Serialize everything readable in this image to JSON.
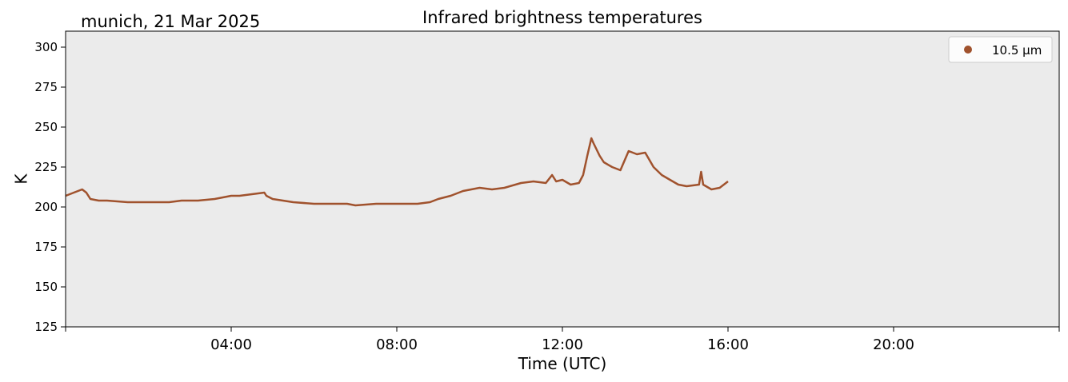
{
  "chart_data": {
    "type": "line",
    "title": "Infrared brightness temperatures",
    "location_label": "munich, 21 Mar 2025",
    "xlabel": "Time (UTC)",
    "ylabel": "K",
    "xlim_hours": [
      0,
      24
    ],
    "ylim": [
      125,
      310
    ],
    "yticks": [
      125,
      150,
      175,
      200,
      225,
      250,
      275,
      300
    ],
    "xticks": [
      {
        "hour": 4,
        "label": "04:00"
      },
      {
        "hour": 8,
        "label": "08:00"
      },
      {
        "hour": 12,
        "label": "12:00"
      },
      {
        "hour": 16,
        "label": "16:00"
      },
      {
        "hour": 20,
        "label": "20:00"
      }
    ],
    "grid": false,
    "legend_position": "top-right",
    "colors": {
      "plot_background": "#ebebeb",
      "series": "#a0522d"
    },
    "series": [
      {
        "name": "10.5 µm",
        "x_hours": [
          0,
          0.1,
          0.2,
          0.3,
          0.4,
          0.5,
          0.6,
          0.8,
          1.0,
          1.5,
          2.0,
          2.5,
          2.8,
          3.2,
          3.6,
          4.0,
          4.2,
          4.5,
          4.8,
          4.85,
          5.0,
          5.5,
          6.0,
          6.5,
          6.8,
          7.0,
          7.5,
          8.0,
          8.5,
          8.8,
          9.0,
          9.3,
          9.6,
          10.0,
          10.3,
          10.6,
          11.0,
          11.3,
          11.6,
          11.75,
          11.85,
          12.0,
          12.2,
          12.4,
          12.5,
          12.6,
          12.7,
          12.75,
          12.9,
          13.0,
          13.2,
          13.4,
          13.6,
          13.8,
          14.0,
          14.2,
          14.4,
          14.6,
          14.8,
          15.0,
          15.3,
          15.35,
          15.4,
          15.6,
          15.8,
          16.0
        ],
        "values": [
          207,
          208,
          209,
          210,
          211,
          209,
          205,
          204,
          204,
          203,
          203,
          203,
          204,
          204,
          205,
          207,
          207,
          208,
          209,
          207,
          205,
          203,
          202,
          202,
          202,
          201,
          202,
          202,
          202,
          203,
          205,
          207,
          210,
          212,
          211,
          212,
          215,
          216,
          215,
          220,
          216,
          217,
          214,
          215,
          220,
          232,
          243,
          240,
          232,
          228,
          225,
          223,
          235,
          233,
          234,
          225,
          220,
          217,
          214,
          213,
          214,
          222,
          214,
          211,
          212,
          216
        ]
      }
    ]
  }
}
